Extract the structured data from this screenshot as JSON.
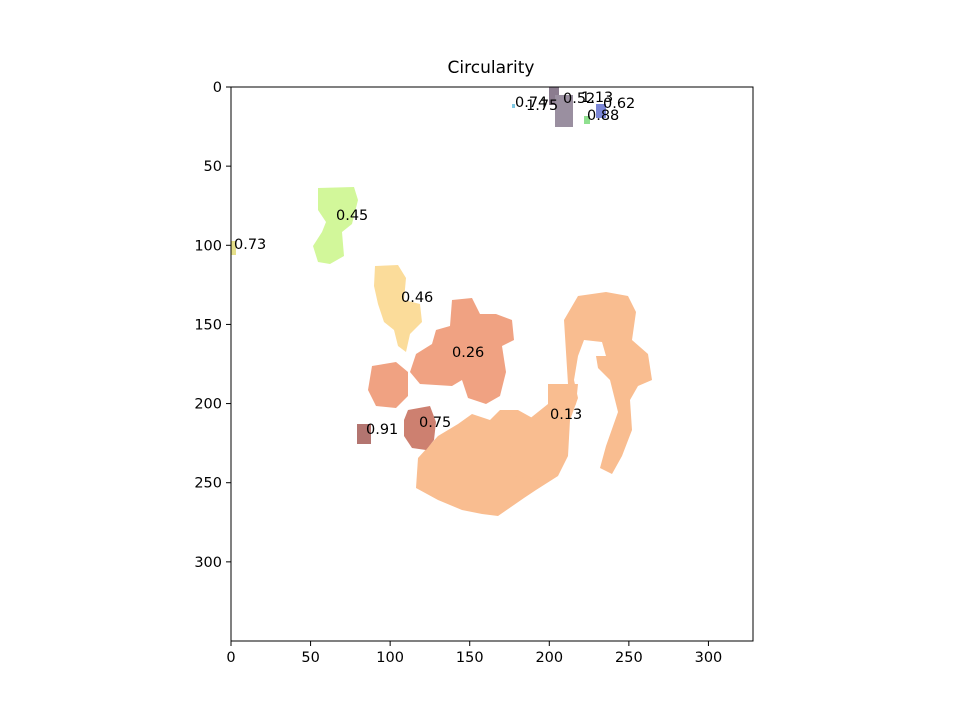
{
  "chart_data": {
    "type": "heatmap",
    "title": "Circularity",
    "xlabel": "",
    "ylabel": "",
    "xlim": [
      0,
      328
    ],
    "ylim": [
      350,
      0
    ],
    "x_ticks": [
      0,
      50,
      100,
      150,
      200,
      250,
      300
    ],
    "y_ticks": [
      0,
      50,
      100,
      150,
      200,
      250,
      300
    ],
    "grid": false,
    "regions": [
      {
        "label": "0.74",
        "value": 0.74,
        "color": "#7ec8e3"
      },
      {
        "label": "0.52",
        "value": 0.52,
        "color": "#8b7c8f"
      },
      {
        "label": "1.13",
        "value": 1.13,
        "color": "#8b7c8f"
      },
      {
        "label": "1.75",
        "value": 1.75,
        "color": "#9a8fa0"
      },
      {
        "label": "0.62",
        "value": 0.62,
        "color": "#7b86d6"
      },
      {
        "label": "0.88",
        "value": 0.88,
        "color": "#8fe08f"
      },
      {
        "label": "0.45",
        "value": 0.45,
        "color": "#d2f79a"
      },
      {
        "label": "0.73",
        "value": 0.73,
        "color": "#e6e08a"
      },
      {
        "label": "0.46",
        "value": 0.46,
        "color": "#fbdc9a"
      },
      {
        "label": "0.26",
        "value": 0.26,
        "color": "#f0a282"
      },
      {
        "label": "0.13",
        "value": 0.13,
        "color": "#f9bd90"
      },
      {
        "label": "0.75",
        "value": 0.75,
        "color": "#cd8070"
      },
      {
        "label": "0.91",
        "value": 0.91,
        "color": "#b37570"
      }
    ]
  }
}
